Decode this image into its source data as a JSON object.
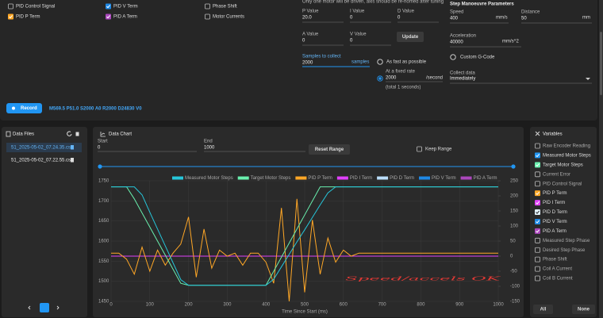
{
  "top": {
    "checks": [
      {
        "label": "PID Control Signal",
        "checked": false
      },
      {
        "label": "PID P Term",
        "checked": true,
        "color": "#ffa726"
      },
      {
        "label": "PID V Term",
        "checked": true,
        "color": "#1e88e5"
      },
      {
        "label": "PID A Term",
        "checked": true,
        "color": "#ab47bc"
      },
      {
        "label": "Phase Shift",
        "checked": false
      },
      {
        "label": "Motor Currents",
        "checked": false
      }
    ],
    "note": "Only one motor will be driven, axis should be re-homed after tuning",
    "fields": [
      {
        "label": "P Value",
        "value": "20.0"
      },
      {
        "label": "I Value",
        "value": "0"
      },
      {
        "label": "D Value",
        "value": "0"
      },
      {
        "label": "A Value",
        "value": "0"
      },
      {
        "label": "V Value",
        "value": "0"
      }
    ],
    "update": "Update",
    "samples_label": "Samples to collect",
    "samples": "2000",
    "samples_unit": "samples",
    "radio_fast": "As fast as possible",
    "rate_label": "At a fixed rate",
    "rate": "2000",
    "rate_unit": "/second",
    "rate_total": "(total 1 seconds)"
  },
  "step": {
    "title": "Step Manoeuvre Parameters",
    "speed_label": "Speed",
    "speed": "400",
    "speed_unit": "mm/s",
    "distance_label": "Distance",
    "distance": "50",
    "distance_unit": "mm",
    "accel_label": "Acceleration",
    "accel": "40000",
    "accel_unit": "mm/s^2",
    "custom": "Custom G-Code",
    "collect_label": "Collect data",
    "collect": "Immediately"
  },
  "record": {
    "button": "Record",
    "command": "M569.5 P51.0 S2000 A0 R2000 D24830 V0"
  },
  "files": {
    "title": "Data Files",
    "items": [
      "51_2025-05-02_07.24.35.csv",
      "51_2025-05-02_07.22.55.csv"
    ],
    "page": "1"
  },
  "chart_panel": {
    "title": "Data Chart",
    "start_label": "Start",
    "start": "0",
    "end_label": "End",
    "end": "1000",
    "reset": "Reset Range",
    "keep": "Keep Range"
  },
  "variables": {
    "title": "Variables",
    "items": [
      {
        "label": "Raw Encoder Reading",
        "checked": false
      },
      {
        "label": "Measured Motor Steps",
        "checked": true,
        "color": "#2196f3"
      },
      {
        "label": "Target Motor Steps",
        "checked": true,
        "color": "#69f0ae"
      },
      {
        "label": "Current Error",
        "checked": false
      },
      {
        "label": "PID Control Signal",
        "checked": false
      },
      {
        "label": "PID P Term",
        "checked": true,
        "color": "#ffa726"
      },
      {
        "label": "PID I Term",
        "checked": true,
        "color": "#e040fb"
      },
      {
        "label": "PID D Term",
        "checked": true,
        "color": "#e3f2fd"
      },
      {
        "label": "PID V Term",
        "checked": true,
        "color": "#1e88e5"
      },
      {
        "label": "PID A Term",
        "checked": true,
        "color": "#ab47bc"
      },
      {
        "label": "Measured Step Phase",
        "checked": false
      },
      {
        "label": "Desired Step Phase",
        "checked": false
      },
      {
        "label": "Phase Shift",
        "checked": false
      },
      {
        "label": "Coil A Current",
        "checked": false
      },
      {
        "label": "Coil B Current",
        "checked": false
      }
    ],
    "all": "All",
    "none": "None"
  },
  "chart_data": {
    "type": "line",
    "xlabel": "Time Since Start (ms)",
    "annotation": "Speed/accels OK",
    "x": [
      0,
      20,
      40,
      60,
      80,
      100,
      120,
      140,
      160,
      180,
      200,
      220,
      240,
      260,
      280,
      300,
      320,
      340,
      360,
      380,
      400,
      420,
      440,
      460,
      480,
      500,
      520,
      540,
      560,
      580,
      600,
      620,
      640,
      660,
      680,
      700,
      720,
      740,
      760,
      780,
      800,
      820,
      840,
      860,
      880,
      900,
      920,
      940,
      960,
      980,
      1000
    ],
    "xlim": [
      0,
      1000
    ],
    "xticks": [
      0,
      100,
      200,
      300,
      400,
      500,
      600,
      700,
      800,
      900,
      1000
    ],
    "ylim": [
      1450,
      1750
    ],
    "yticks": [
      1450,
      1500,
      1550,
      1600,
      1650,
      1700,
      1750
    ],
    "y2lim": [
      -150,
      250
    ],
    "y2ticks": [
      -150,
      -100,
      -50,
      0,
      50,
      100,
      150,
      200,
      250
    ],
    "grid": true,
    "series": [
      {
        "name": "Measured Motor Steps",
        "color": "#26c6da",
        "axis": "y",
        "values": [
          1735,
          1735,
          1735,
          1735,
          1715,
          1672,
          1630,
          1588,
          1546,
          1504,
          1490,
          1490,
          1490,
          1490,
          1490,
          1490,
          1490,
          1490,
          1490,
          1490,
          1490,
          1505,
          1536,
          1567,
          1598,
          1628,
          1659,
          1690,
          1720,
          1735,
          1735,
          1735,
          1735,
          1735,
          1735,
          1735,
          1735,
          1735,
          1735,
          1735,
          1735,
          1735,
          1735,
          1735,
          1735,
          1735,
          1735,
          1735,
          1735,
          1735,
          1735
        ]
      },
      {
        "name": "Target Motor Steps",
        "color": "#69f0ae",
        "axis": "y",
        "values": [
          1735,
          1735,
          1735,
          1705,
          1670,
          1635,
          1600,
          1565,
          1530,
          1495,
          1490,
          1490,
          1490,
          1490,
          1490,
          1490,
          1490,
          1490,
          1490,
          1490,
          1490,
          1525,
          1560,
          1595,
          1630,
          1665,
          1700,
          1735,
          1735,
          1735,
          1735,
          1735,
          1735,
          1735,
          1735,
          1735,
          1735,
          1735,
          1735,
          1735,
          1735,
          1735,
          1735,
          1735,
          1735,
          1735,
          1735,
          1735,
          1735,
          1735,
          1735
        ]
      },
      {
        "name": "PID P Term",
        "color": "#ffa726",
        "axis": "y2",
        "values": [
          10,
          10,
          -10,
          -60,
          30,
          -50,
          20,
          -30,
          10,
          40,
          130,
          -70,
          90,
          -40,
          20,
          0,
          10,
          -30,
          10,
          10,
          -20,
          -90,
          160,
          -150,
          190,
          -120,
          120,
          -60,
          60,
          -20,
          20,
          0,
          10,
          10,
          10,
          10,
          10,
          10,
          10,
          10,
          10,
          10,
          10,
          10,
          10,
          10,
          10,
          10,
          10,
          10,
          10
        ]
      },
      {
        "name": "PID I Term",
        "color": "#e040fb",
        "axis": "y2",
        "values": [
          0,
          0,
          0,
          0,
          0,
          0,
          0,
          0,
          0,
          0,
          0,
          0,
          0,
          0,
          0,
          0,
          0,
          0,
          0,
          0,
          0,
          0,
          0,
          0,
          0,
          0,
          0,
          0,
          0,
          0,
          0,
          0,
          0,
          0,
          0,
          0,
          0,
          0,
          0,
          0,
          0,
          0,
          0,
          0,
          0,
          0,
          0,
          0,
          0,
          0,
          0
        ]
      },
      {
        "name": "PID D Term",
        "color": "#bbdefb",
        "axis": "y2",
        "values": [
          0,
          0,
          0,
          0,
          0,
          0,
          0,
          0,
          0,
          0,
          0,
          0,
          0,
          0,
          0,
          0,
          0,
          0,
          0,
          0,
          0,
          0,
          0,
          0,
          0,
          0,
          0,
          0,
          0,
          0,
          0,
          0,
          0,
          0,
          0,
          0,
          0,
          0,
          0,
          0,
          0,
          0,
          0,
          0,
          0,
          0,
          0,
          0,
          0,
          0,
          0
        ]
      },
      {
        "name": "PID V Term",
        "color": "#1e88e5",
        "axis": "y2",
        "values": [
          0,
          0,
          0,
          0,
          0,
          0,
          0,
          0,
          0,
          0,
          0,
          0,
          0,
          0,
          0,
          0,
          0,
          0,
          0,
          0,
          0,
          0,
          0,
          0,
          0,
          0,
          0,
          0,
          0,
          0,
          0,
          0,
          0,
          0,
          0,
          0,
          0,
          0,
          0,
          0,
          0,
          0,
          0,
          0,
          0,
          0,
          0,
          0,
          0,
          0,
          0
        ]
      },
      {
        "name": "PID A Term",
        "color": "#ab47bc",
        "axis": "y2",
        "values": [
          0,
          0,
          0,
          0,
          0,
          0,
          0,
          0,
          0,
          0,
          0,
          0,
          0,
          0,
          0,
          0,
          0,
          0,
          0,
          0,
          0,
          0,
          0,
          0,
          0,
          0,
          0,
          0,
          0,
          0,
          0,
          0,
          0,
          0,
          0,
          0,
          0,
          0,
          0,
          0,
          0,
          0,
          0,
          0,
          0,
          0,
          0,
          0,
          0,
          0,
          0
        ]
      }
    ]
  }
}
